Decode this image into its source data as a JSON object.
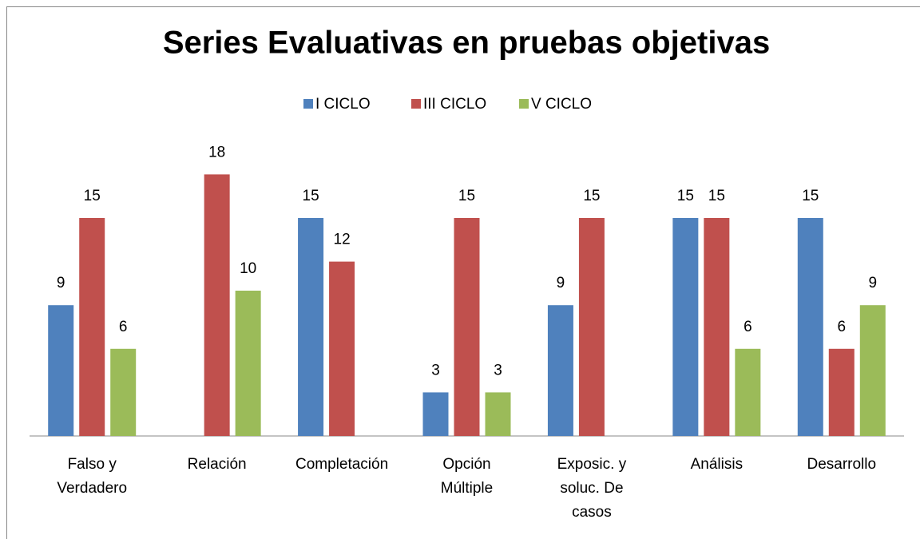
{
  "chart_data": {
    "type": "bar",
    "title": "Series Evaluativas en pruebas objetivas",
    "categories": [
      "Falso y\nVerdadero",
      "Relación",
      "Completación",
      "Opción\nMúltiple",
      "Exposic. y\nsoluc. De\ncasos",
      "Análisis",
      "Desarrollo"
    ],
    "series": [
      {
        "name": "I CICLO",
        "color": "#4f81bd",
        "values": [
          9,
          null,
          15,
          3,
          9,
          15,
          15
        ]
      },
      {
        "name": "III CICLO",
        "color": "#c0504d",
        "values": [
          15,
          18,
          12,
          15,
          15,
          15,
          6
        ]
      },
      {
        "name": "V CICLO",
        "color": "#9bbb59",
        "values": [
          6,
          10,
          null,
          3,
          null,
          6,
          9
        ]
      }
    ],
    "ylim": [
      0,
      20
    ],
    "legend": "top"
  }
}
